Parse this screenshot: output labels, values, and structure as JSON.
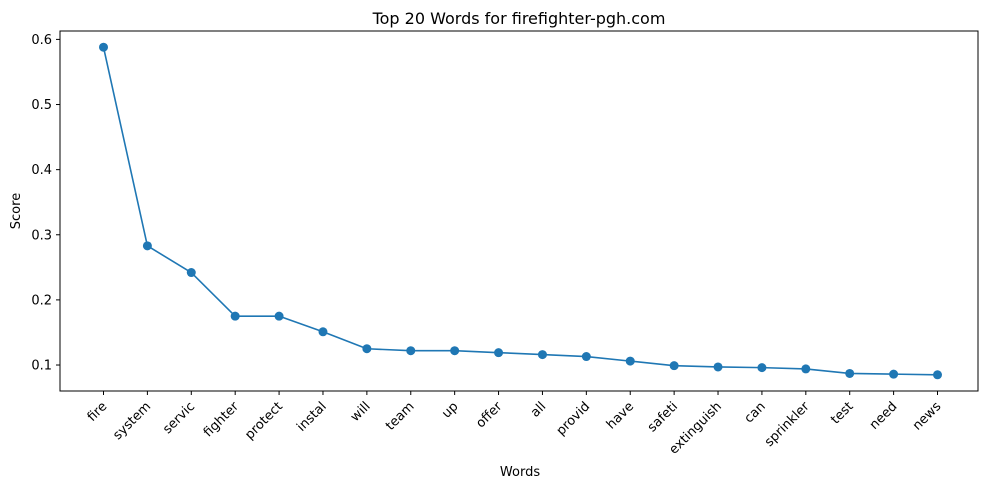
{
  "chart_data": {
    "type": "line",
    "title": "Top 20 Words for firefighter-pgh.com",
    "xlabel": "Words",
    "ylabel": "Score",
    "categories": [
      "fire",
      "system",
      "servic",
      "fighter",
      "protect",
      "instal",
      "will",
      "team",
      "up",
      "offer",
      "all",
      "provid",
      "have",
      "safeti",
      "extinguish",
      "can",
      "sprinkler",
      "test",
      "need",
      "news"
    ],
    "values": [
      0.588,
      0.283,
      0.242,
      0.175,
      0.175,
      0.151,
      0.125,
      0.122,
      0.122,
      0.119,
      0.116,
      0.113,
      0.106,
      0.099,
      0.097,
      0.096,
      0.094,
      0.087,
      0.086,
      0.085
    ],
    "yticks": [
      0.1,
      0.2,
      0.3,
      0.4,
      0.5,
      0.6
    ],
    "ylim": [
      0.0601,
      0.6129
    ],
    "grid": false,
    "line_color": "#1f77b4",
    "marker": "circle"
  }
}
